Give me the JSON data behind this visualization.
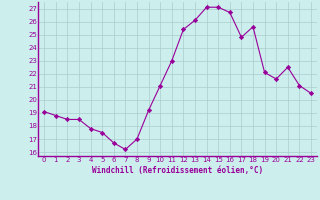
{
  "x": [
    0,
    1,
    2,
    3,
    4,
    5,
    6,
    7,
    8,
    9,
    10,
    11,
    12,
    13,
    14,
    15,
    16,
    17,
    18,
    19,
    20,
    21,
    22,
    23
  ],
  "y": [
    19.1,
    18.8,
    18.5,
    18.5,
    17.8,
    17.5,
    16.7,
    16.2,
    17.0,
    19.2,
    21.1,
    23.0,
    25.4,
    26.1,
    27.1,
    27.1,
    26.7,
    24.8,
    25.6,
    22.1,
    21.6,
    22.5,
    21.1,
    20.5
  ],
  "line_color": "#990099",
  "marker": "D",
  "marker_size": 2.2,
  "bg_color": "#cceeed",
  "grid_color": "#aacccc",
  "xlabel": "Windchill (Refroidissement éolien,°C)",
  "xlabel_color": "#990099",
  "tick_color": "#990099",
  "axis_line_color": "#990099",
  "ylim": [
    15.7,
    27.5
  ],
  "yticks": [
    16,
    17,
    18,
    19,
    20,
    21,
    22,
    23,
    24,
    25,
    26,
    27
  ],
  "xticks": [
    0,
    1,
    2,
    3,
    4,
    5,
    6,
    7,
    8,
    9,
    10,
    11,
    12,
    13,
    14,
    15,
    16,
    17,
    18,
    19,
    20,
    21,
    22,
    23
  ],
  "xlim": [
    -0.5,
    23.5
  ]
}
